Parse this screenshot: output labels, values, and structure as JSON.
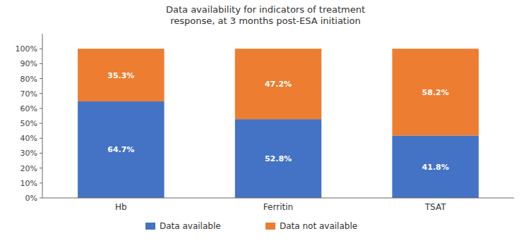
{
  "chart_data": {
    "type": "bar",
    "stacked": true,
    "title": "Data availability for indicators of treatment\nresponse, at 3 months post-ESA initiation",
    "categories": [
      "Hb",
      "Ferritin",
      "TSAT"
    ],
    "series": [
      {
        "name": "Data available",
        "color": "#4472C4",
        "values": [
          64.7,
          52.8,
          41.8
        ],
        "value_labels": [
          "64.7%",
          "52.8%",
          "41.8%"
        ]
      },
      {
        "name": "Data not available",
        "color": "#ED7D31",
        "values": [
          35.3,
          47.2,
          58.2
        ],
        "value_labels": [
          "35.3%",
          "47.2%",
          "58.2%"
        ]
      }
    ],
    "ylim": [
      0,
      110
    ],
    "yticks": [
      {
        "value": 0,
        "label": "0%"
      },
      {
        "value": 10,
        "label": "10%"
      },
      {
        "value": 20,
        "label": "20%"
      },
      {
        "value": 30,
        "label": "30%"
      },
      {
        "value": 40,
        "label": "40%"
      },
      {
        "value": 50,
        "label": "50%"
      },
      {
        "value": 60,
        "label": "60%"
      },
      {
        "value": 70,
        "label": "70%"
      },
      {
        "value": 80,
        "label": "80%"
      },
      {
        "value": 90,
        "label": "90%"
      },
      {
        "value": 100,
        "label": "100%"
      }
    ],
    "data_labels": true,
    "legend": "bottom",
    "grid": false
  }
}
